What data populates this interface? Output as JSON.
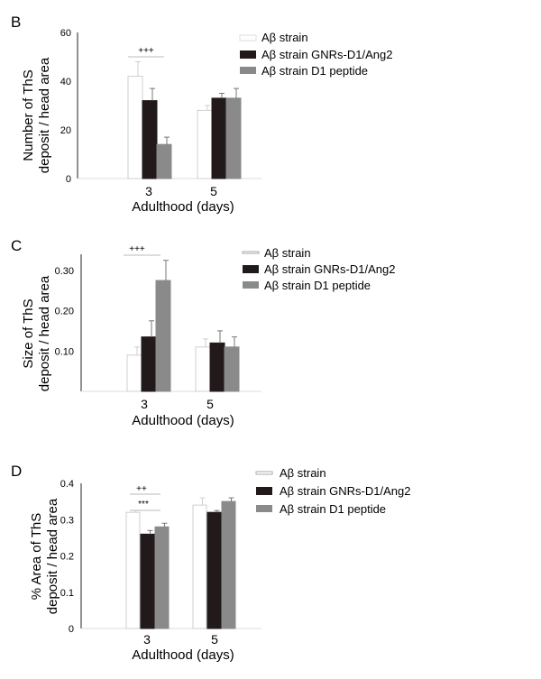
{
  "chart_data": [
    {
      "panel": "B",
      "type": "bar",
      "categories": [
        "3",
        "5"
      ],
      "xlabel": "Adulthood (days)",
      "ylabel_lines": [
        "Number of ThS",
        "deposit / head area"
      ],
      "ylim": [
        0,
        60
      ],
      "yticks": [
        "0",
        "20",
        "40",
        "60"
      ],
      "series": [
        {
          "name": "Aβ strain",
          "values": [
            42,
            28
          ],
          "errors": [
            6,
            2
          ],
          "color": "#ffffff"
        },
        {
          "name": "Aβ strain GNRs-D1/Ang2",
          "values": [
            32,
            33
          ],
          "errors": [
            5,
            2
          ],
          "color": "#221a1a"
        },
        {
          "name": "Aβ strain D1 peptide",
          "values": [
            14,
            33
          ],
          "errors": [
            3,
            4
          ],
          "color": "#8a8a8a"
        }
      ],
      "annotations": [
        "+++"
      ]
    },
    {
      "panel": "C",
      "type": "bar",
      "categories": [
        "3",
        "5"
      ],
      "xlabel": "Adulthood (days)",
      "ylabel_lines": [
        "Size of ThS",
        "deposit / head area"
      ],
      "ylim": [
        0,
        0.34
      ],
      "yticks": [
        "0.10",
        "0.20",
        "0.30"
      ],
      "ytick_values": [
        0.1,
        0.2,
        0.3
      ],
      "series": [
        {
          "name": "Aβ strain",
          "values": [
            0.09,
            0.11
          ],
          "errors": [
            0.02,
            0.02
          ],
          "color": "#ffffff"
        },
        {
          "name": "Aβ strain GNRs-D1/Ang2",
          "values": [
            0.135,
            0.12
          ],
          "errors": [
            0.04,
            0.03
          ],
          "color": "#221a1a"
        },
        {
          "name": "Aβ strain D1 peptide",
          "values": [
            0.275,
            0.11
          ],
          "errors": [
            0.05,
            0.025
          ],
          "color": "#8a8a8a"
        }
      ],
      "annotations": [
        "+++"
      ]
    },
    {
      "panel": "D",
      "type": "bar",
      "categories": [
        "3",
        "5"
      ],
      "xlabel": "Adulthood (days)",
      "ylabel_lines": [
        "% Area of ThS",
        "deposit / head area"
      ],
      "ylim": [
        0,
        0.4
      ],
      "yticks": [
        "0",
        "0.1",
        "0.2",
        "0.3",
        "0.4"
      ],
      "ytick_values": [
        0,
        0.1,
        0.2,
        0.3,
        0.4
      ],
      "series": [
        {
          "name": "Aβ strain",
          "values": [
            0.32,
            0.34
          ],
          "errors": [
            0.005,
            0.02
          ],
          "color": "#ffffff"
        },
        {
          "name": "Aβ strain GNRs-D1/Ang2",
          "values": [
            0.26,
            0.32
          ],
          "errors": [
            0.01,
            0.005
          ],
          "color": "#221a1a"
        },
        {
          "name": "Aβ strain D1 peptide",
          "values": [
            0.28,
            0.35
          ],
          "errors": [
            0.01,
            0.01
          ],
          "color": "#8a8a8a"
        }
      ],
      "annotations": [
        "++",
        "***"
      ]
    }
  ]
}
